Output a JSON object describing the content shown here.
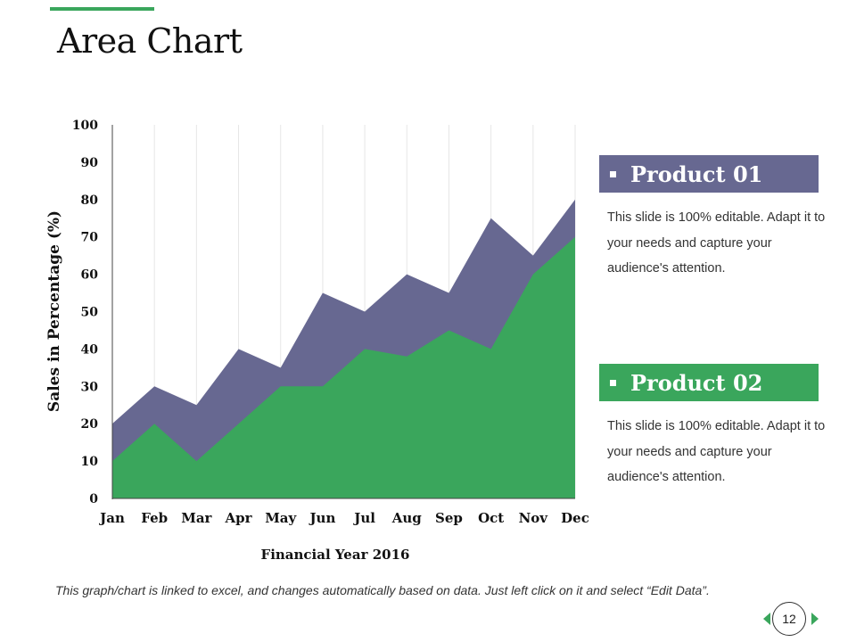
{
  "slide": {
    "title": "Area Chart",
    "footer_note": "This graph/chart is linked to excel, and changes automatically based on data. Just left click on it and select “Edit Data”.",
    "page_number": "12",
    "accent_color": "#3aa65c"
  },
  "legend": [
    {
      "label": "Product 01",
      "color": "#676891",
      "description": "This slide is 100% editable. Adapt it to your needs and capture your audience's attention."
    },
    {
      "label": "Product 02",
      "color": "#3aa65c",
      "description": "This slide is 100% editable. Adapt it to your needs and capture your audience's attention."
    }
  ],
  "chart_data": {
    "type": "area",
    "title": "",
    "xlabel": "Financial Year 2016",
    "ylabel": "Sales in Percentage (%)",
    "categories": [
      "Jan",
      "Feb",
      "Mar",
      "Apr",
      "May",
      "Jun",
      "Jul",
      "Aug",
      "Sep",
      "Oct",
      "Nov",
      "Dec"
    ],
    "ylim": [
      0,
      100
    ],
    "yticks": [
      0,
      10,
      20,
      30,
      40,
      50,
      60,
      70,
      80,
      90,
      100
    ],
    "grid": "vertical",
    "legend_position": "right",
    "series": [
      {
        "name": "Product 01",
        "color": "#676891",
        "values": [
          20,
          30,
          25,
          40,
          35,
          55,
          50,
          60,
          55,
          75,
          65,
          80
        ]
      },
      {
        "name": "Product 02",
        "color": "#3aa65c",
        "values": [
          10,
          20,
          10,
          20,
          30,
          30,
          40,
          38,
          45,
          40,
          60,
          70
        ]
      }
    ]
  }
}
